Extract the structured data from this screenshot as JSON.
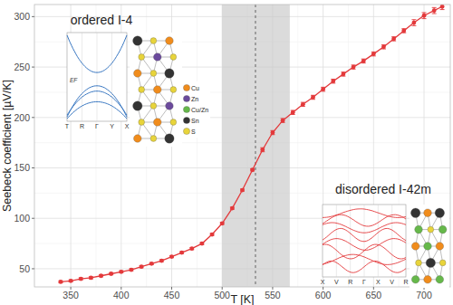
{
  "chart_data": {
    "type": "line",
    "x_label": "T [K]",
    "y_label": "Seebeck coefficient [µV/K]",
    "x": [
      340,
      350,
      360,
      370,
      380,
      390,
      400,
      410,
      420,
      430,
      440,
      450,
      460,
      470,
      480,
      490,
      500,
      510,
      520,
      530,
      540,
      550,
      560,
      570,
      580,
      590,
      600,
      610,
      620,
      630,
      640,
      650,
      660,
      670,
      680,
      690,
      700,
      710,
      718
    ],
    "series": [
      {
        "name": "Seebeck coefficient",
        "color": "#e3393b",
        "marker": "circle",
        "line_style": "solid",
        "values": [
          37,
          38,
          40,
          41,
          43,
          45,
          47,
          49,
          52,
          55,
          58,
          62,
          66,
          70,
          75,
          84,
          95,
          110,
          128,
          148,
          168,
          185,
          197,
          205,
          213,
          220,
          228,
          236,
          243,
          250,
          256,
          263,
          270,
          278,
          286,
          294,
          301,
          306,
          310
        ],
        "errors": [
          1,
          1,
          1,
          1,
          1,
          1,
          1,
          1,
          1,
          1,
          1,
          1,
          1,
          1,
          1,
          1,
          1,
          1,
          1,
          1,
          2,
          2,
          2,
          2,
          2,
          2,
          2,
          2,
          2,
          2,
          2,
          2,
          2,
          2,
          2,
          3,
          3,
          3,
          3
        ]
      }
    ],
    "xlim": [
      314,
      726
    ],
    "xticks": [
      350,
      400,
      450,
      500,
      550,
      600,
      650,
      700
    ],
    "ylim": [
      32,
      312
    ],
    "yticks": [
      50,
      100,
      150,
      200,
      250,
      300
    ],
    "grid": true,
    "shaded_band": [
      500,
      567
    ],
    "vline": 533
  },
  "insets": [
    {
      "title": "ordered I-4",
      "band_labels": [
        "T",
        "R",
        "Γ",
        "Y",
        "X"
      ],
      "energy_label": "EF",
      "band_color": "#3a78c2"
    },
    {
      "title": "disordered I-42m",
      "band_labels": [
        "X",
        "V",
        "R",
        "Γ",
        "X",
        "V",
        "R"
      ],
      "band_color": "#e3393b"
    }
  ],
  "atoms": [
    {
      "label": "Cu",
      "color": "#f08c1c"
    },
    {
      "label": "Zn",
      "color": "#6b4a9c"
    },
    {
      "label": "Cu/Zn",
      "color": "#66b84a"
    },
    {
      "label": "Sn",
      "color": "#333333"
    },
    {
      "label": "S",
      "color": "#e8d43a"
    }
  ]
}
